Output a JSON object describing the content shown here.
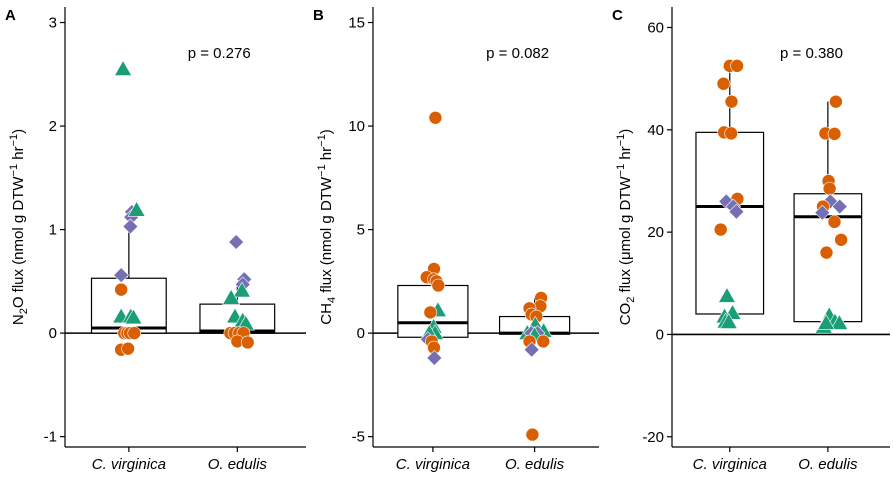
{
  "colors": {
    "Ocean_black": "#000000",
    "circle": "#D95F02",
    "triangle": "#1B9E77",
    "diamond": "#7570B3",
    "box_fill": "#FFFFFF",
    "zero_line": "#000000"
  },
  "chart_data": [
    {
      "type": "box",
      "panel": "A",
      "ylabel": {
        "pre": "N",
        "sub": "2",
        "mid": "O flux (nmol g DTW",
        "sup1": "−1",
        "mid2": " hr",
        "sup2": "−1",
        "post": ")"
      },
      "ylim": [
        -1.1,
        3.15
      ],
      "yticks": [
        -1,
        0,
        1,
        2,
        3
      ],
      "ytick_labels": [
        "-1",
        "0",
        "1",
        "2",
        "3"
      ],
      "categories": [
        "C. virginica",
        "O. edulis"
      ],
      "p_value": "p = 0.276",
      "boxes": [
        {
          "q1": 0.0,
          "median": 0.05,
          "q3": 0.53,
          "wmin": 0.0,
          "wmax": 1.1
        },
        {
          "q1": 0.0,
          "median": 0.02,
          "q3": 0.28,
          "wmin": 0.0,
          "wmax": 0.45
        }
      ],
      "points": [
        {
          "cat": 0,
          "dx": -0.15,
          "y": 2.55,
          "shape": "triangle"
        },
        {
          "cat": 0,
          "dx": 0.08,
          "y": 1.17,
          "shape": "diamond"
        },
        {
          "cat": 0,
          "dx": 0.06,
          "y": 1.12,
          "shape": "diamond"
        },
        {
          "cat": 0,
          "dx": 0.2,
          "y": 1.19,
          "shape": "triangle"
        },
        {
          "cat": 0,
          "dx": 0.04,
          "y": 1.03,
          "shape": "diamond"
        },
        {
          "cat": 0,
          "dx": -0.2,
          "y": 0.56,
          "shape": "diamond"
        },
        {
          "cat": 0,
          "dx": -0.2,
          "y": 0.42,
          "shape": "circle"
        },
        {
          "cat": 0,
          "dx": -0.2,
          "y": 0.16,
          "shape": "triangle"
        },
        {
          "cat": 0,
          "dx": 0.05,
          "y": 0.16,
          "shape": "triangle"
        },
        {
          "cat": 0,
          "dx": 0.12,
          "y": 0.15,
          "shape": "triangle"
        },
        {
          "cat": 0,
          "dx": -0.12,
          "y": 0.0,
          "shape": "circle"
        },
        {
          "cat": 0,
          "dx": -0.04,
          "y": 0.0,
          "shape": "circle"
        },
        {
          "cat": 0,
          "dx": 0.03,
          "y": 0.0,
          "shape": "circle"
        },
        {
          "cat": 0,
          "dx": 0.14,
          "y": 0.0,
          "shape": "circle"
        },
        {
          "cat": 0,
          "dx": -0.2,
          "y": -0.16,
          "shape": "circle"
        },
        {
          "cat": 0,
          "dx": -0.02,
          "y": -0.15,
          "shape": "circle"
        },
        {
          "cat": 1,
          "dx": -0.03,
          "y": 0.88,
          "shape": "diamond"
        },
        {
          "cat": 1,
          "dx": 0.18,
          "y": 0.52,
          "shape": "diamond"
        },
        {
          "cat": 1,
          "dx": 0.14,
          "y": 0.47,
          "shape": "diamond"
        },
        {
          "cat": 1,
          "dx": 0.12,
          "y": 0.41,
          "shape": "triangle"
        },
        {
          "cat": 1,
          "dx": -0.16,
          "y": 0.34,
          "shape": "triangle"
        },
        {
          "cat": 1,
          "dx": -0.06,
          "y": 0.16,
          "shape": "triangle"
        },
        {
          "cat": 1,
          "dx": 0.14,
          "y": 0.12,
          "shape": "triangle"
        },
        {
          "cat": 1,
          "dx": 0.22,
          "y": 0.09,
          "shape": "triangle"
        },
        {
          "cat": 1,
          "dx": -0.18,
          "y": 0.0,
          "shape": "circle"
        },
        {
          "cat": 1,
          "dx": -0.07,
          "y": 0.0,
          "shape": "circle"
        },
        {
          "cat": 1,
          "dx": 0.05,
          "y": 0.0,
          "shape": "circle"
        },
        {
          "cat": 1,
          "dx": 0.16,
          "y": 0.0,
          "shape": "circle"
        },
        {
          "cat": 1,
          "dx": 0.0,
          "y": -0.08,
          "shape": "circle"
        },
        {
          "cat": 1,
          "dx": 0.27,
          "y": -0.09,
          "shape": "circle"
        }
      ]
    },
    {
      "type": "box",
      "panel": "B",
      "ylabel": {
        "pre": "CH",
        "sub": "4",
        "mid": " flux (nmol g DTW",
        "sup1": "−1",
        "mid2": " hr",
        "sup2": "−1",
        "post": ")"
      },
      "ylim": [
        -5.5,
        15.75
      ],
      "yticks": [
        -5,
        0,
        5,
        10,
        15
      ],
      "ytick_labels": [
        "-5",
        "0",
        "5",
        "10",
        "15"
      ],
      "categories": [
        "C. virginica",
        "O. edulis"
      ],
      "p_value": "p = 0.082",
      "boxes": [
        {
          "q1": -0.2,
          "median": 0.5,
          "q3": 2.3,
          "wmin": -0.5,
          "wmax": 3.1
        },
        {
          "q1": -0.05,
          "median": 0.0,
          "q3": 0.8,
          "wmin": -0.8,
          "wmax": 1.7
        }
      ],
      "points": [
        {
          "cat": 0,
          "dx": 0.07,
          "y": 10.4,
          "shape": "circle"
        },
        {
          "cat": 0,
          "dx": 0.03,
          "y": 3.1,
          "shape": "circle"
        },
        {
          "cat": 0,
          "dx": -0.17,
          "y": 2.7,
          "shape": "circle"
        },
        {
          "cat": 0,
          "dx": 0.03,
          "y": 2.6,
          "shape": "circle"
        },
        {
          "cat": 0,
          "dx": 0.1,
          "y": 2.5,
          "shape": "circle"
        },
        {
          "cat": 0,
          "dx": 0.15,
          "y": 2.3,
          "shape": "circle"
        },
        {
          "cat": 0,
          "dx": 0.14,
          "y": 1.1,
          "shape": "triangle"
        },
        {
          "cat": 0,
          "dx": -0.07,
          "y": 1.0,
          "shape": "circle"
        },
        {
          "cat": 0,
          "dx": 0.02,
          "y": 0.3,
          "shape": "triangle"
        },
        {
          "cat": 0,
          "dx": 0.06,
          "y": 0.0,
          "shape": "triangle"
        },
        {
          "cat": 0,
          "dx": -0.1,
          "y": 0.0,
          "shape": "triangle"
        },
        {
          "cat": 0,
          "dx": -0.14,
          "y": -0.3,
          "shape": "diamond"
        },
        {
          "cat": 0,
          "dx": -0.03,
          "y": -0.4,
          "shape": "circle"
        },
        {
          "cat": 0,
          "dx": 0.03,
          "y": -0.7,
          "shape": "circle"
        },
        {
          "cat": 0,
          "dx": 0.04,
          "y": -1.2,
          "shape": "diamond"
        },
        {
          "cat": 1,
          "dx": 0.18,
          "y": 1.7,
          "shape": "circle"
        },
        {
          "cat": 1,
          "dx": 0.16,
          "y": 1.3,
          "shape": "circle"
        },
        {
          "cat": 1,
          "dx": -0.14,
          "y": 1.2,
          "shape": "circle"
        },
        {
          "cat": 1,
          "dx": -0.08,
          "y": 0.9,
          "shape": "circle"
        },
        {
          "cat": 1,
          "dx": 0.05,
          "y": 0.8,
          "shape": "circle"
        },
        {
          "cat": 1,
          "dx": 0.02,
          "y": 0.4,
          "shape": "triangle"
        },
        {
          "cat": 1,
          "dx": 0.25,
          "y": 0.1,
          "shape": "triangle"
        },
        {
          "cat": 1,
          "dx": -0.2,
          "y": 0.0,
          "shape": "triangle"
        },
        {
          "cat": 1,
          "dx": -0.09,
          "y": 0.0,
          "shape": "diamond"
        },
        {
          "cat": 1,
          "dx": 0.08,
          "y": 0.0,
          "shape": "diamond"
        },
        {
          "cat": 1,
          "dx": 0.0,
          "y": -0.1,
          "shape": "triangle"
        },
        {
          "cat": 1,
          "dx": -0.14,
          "y": -0.4,
          "shape": "circle"
        },
        {
          "cat": 1,
          "dx": 0.24,
          "y": -0.4,
          "shape": "circle"
        },
        {
          "cat": 1,
          "dx": -0.08,
          "y": -0.8,
          "shape": "diamond"
        },
        {
          "cat": 1,
          "dx": -0.06,
          "y": -4.9,
          "shape": "circle"
        }
      ]
    },
    {
      "type": "box",
      "panel": "C",
      "ylabel": {
        "pre": "CO",
        "sub": "2",
        "mid": " flux (μmol g DTW",
        "sup1": "−1",
        "mid2": " hr",
        "sup2": "−1",
        "post": ")"
      },
      "ylim": [
        -22,
        64
      ],
      "yticks": [
        -20,
        0,
        20,
        40,
        60
      ],
      "ytick_labels": [
        "-20",
        "0",
        "20",
        "40",
        "60"
      ],
      "categories": [
        "C. virginica",
        "O. edulis"
      ],
      "p_value": "p = 0.380",
      "boxes": [
        {
          "q1": 4.0,
          "median": 25.0,
          "q3": 39.5,
          "wmin": 2.0,
          "wmax": 52.5
        },
        {
          "q1": 2.5,
          "median": 23.0,
          "q3": 27.5,
          "wmin": 1.5,
          "wmax": 45.5
        }
      ],
      "points": [
        {
          "cat": 0,
          "dx": 0.0,
          "y": 52.5,
          "shape": "circle"
        },
        {
          "cat": 0,
          "dx": 0.21,
          "y": 52.5,
          "shape": "circle"
        },
        {
          "cat": 0,
          "dx": -0.18,
          "y": 49.0,
          "shape": "circle"
        },
        {
          "cat": 0,
          "dx": 0.05,
          "y": 45.5,
          "shape": "circle"
        },
        {
          "cat": 0,
          "dx": -0.16,
          "y": 39.5,
          "shape": "circle"
        },
        {
          "cat": 0,
          "dx": 0.04,
          "y": 39.3,
          "shape": "circle"
        },
        {
          "cat": 0,
          "dx": 0.22,
          "y": 26.5,
          "shape": "circle"
        },
        {
          "cat": 0,
          "dx": -0.1,
          "y": 26.0,
          "shape": "diamond"
        },
        {
          "cat": 0,
          "dx": 0.1,
          "y": 25.0,
          "shape": "diamond"
        },
        {
          "cat": 0,
          "dx": 0.19,
          "y": 24.0,
          "shape": "diamond"
        },
        {
          "cat": 0,
          "dx": -0.26,
          "y": 20.5,
          "shape": "circle"
        },
        {
          "cat": 0,
          "dx": -0.08,
          "y": 7.5,
          "shape": "triangle"
        },
        {
          "cat": 0,
          "dx": 0.08,
          "y": 4.2,
          "shape": "triangle"
        },
        {
          "cat": 0,
          "dx": -0.15,
          "y": 3.5,
          "shape": "triangle"
        },
        {
          "cat": 0,
          "dx": -0.12,
          "y": 2.5,
          "shape": "triangle"
        },
        {
          "cat": 0,
          "dx": -0.03,
          "y": 2.4,
          "shape": "triangle"
        },
        {
          "cat": 1,
          "dx": 0.23,
          "y": 45.5,
          "shape": "circle"
        },
        {
          "cat": 1,
          "dx": -0.07,
          "y": 39.3,
          "shape": "circle"
        },
        {
          "cat": 1,
          "dx": 0.19,
          "y": 39.2,
          "shape": "circle"
        },
        {
          "cat": 1,
          "dx": 0.02,
          "y": 30.0,
          "shape": "circle"
        },
        {
          "cat": 1,
          "dx": 0.05,
          "y": 28.5,
          "shape": "circle"
        },
        {
          "cat": 1,
          "dx": 0.07,
          "y": 26.0,
          "shape": "diamond"
        },
        {
          "cat": 1,
          "dx": -0.14,
          "y": 25.0,
          "shape": "circle"
        },
        {
          "cat": 1,
          "dx": 0.34,
          "y": 25.0,
          "shape": "diamond"
        },
        {
          "cat": 1,
          "dx": -0.16,
          "y": 23.8,
          "shape": "diamond"
        },
        {
          "cat": 1,
          "dx": 0.19,
          "y": 22.0,
          "shape": "circle"
        },
        {
          "cat": 1,
          "dx": 0.38,
          "y": 18.5,
          "shape": "circle"
        },
        {
          "cat": 1,
          "dx": -0.04,
          "y": 16.0,
          "shape": "circle"
        },
        {
          "cat": 1,
          "dx": 0.04,
          "y": 3.7,
          "shape": "triangle"
        },
        {
          "cat": 1,
          "dx": 0.2,
          "y": 2.5,
          "shape": "triangle"
        },
        {
          "cat": 1,
          "dx": 0.33,
          "y": 2.2,
          "shape": "triangle"
        },
        {
          "cat": 1,
          "dx": -0.12,
          "y": 1.5,
          "shape": "triangle"
        },
        {
          "cat": 1,
          "dx": -0.05,
          "y": 2.2,
          "shape": "triangle"
        }
      ]
    }
  ]
}
